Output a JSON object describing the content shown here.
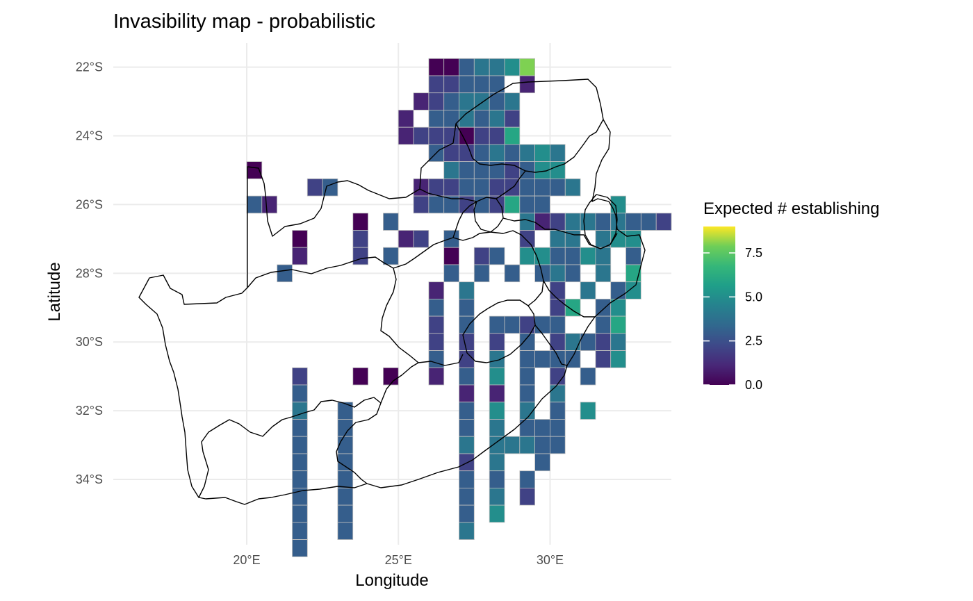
{
  "chart_data": {
    "type": "heatmap",
    "title": "Invasibility map - probabilistic",
    "xlabel": "Longitude",
    "ylabel": "Latitude",
    "xlim": [
      15.6,
      34.0
    ],
    "ylim": [
      -35.9,
      -21.3
    ],
    "x_ticks": [
      {
        "value": 20,
        "label": "20°E"
      },
      {
        "value": 25,
        "label": "25°E"
      },
      {
        "value": 30,
        "label": "30°E"
      }
    ],
    "y_ticks": [
      {
        "value": -22,
        "label": "22°S"
      },
      {
        "value": -24,
        "label": "24°S"
      },
      {
        "value": -26,
        "label": "26°S"
      },
      {
        "value": -28,
        "label": "28°S"
      },
      {
        "value": -30,
        "label": "30°S"
      },
      {
        "value": -32,
        "label": "32°S"
      },
      {
        "value": -34,
        "label": "34°S"
      }
    ],
    "grid": true,
    "cell_size_deg": 0.5,
    "grid_origin_lat": -22,
    "grid_origin_lon": 16.5,
    "legend": {
      "title": "Expected # establishing",
      "colormap": "viridis",
      "min": 0,
      "max": 9,
      "ticks": [
        {
          "value": 0,
          "label": "0.0"
        },
        {
          "value": 2.5,
          "label": "2.5"
        },
        {
          "value": 5,
          "label": "5.0"
        },
        {
          "value": 7.5,
          "label": "7.5"
        }
      ],
      "position": "right"
    },
    "cells": [
      "...................0034458..",
      "...................22333.1..",
      "..................1234434...",
      ".................1.334342...",
      ".................12220226...",
      "...................322343454",
      ".......0............43332355",
      "...........23.....12233223334",
      ".......31.........233232633....5",
      "..............0.3........4124434332...",
      "..........0...2..12.3....2.44.455",
      "..........1...2.3...0.23.553354.3",
      ".........3..........3.3.3.343.4.6",
      "...................1.4.....2.4.35",
      "...................3.3.....26.35",
      "...................2.3.33233..36",
      "...................2.2.2.3.24324",
      "...................3.2.4.3333.25",
      "..........2...0.0..1.3.5.3.2.3.",
      "..........3..........1.1.3.4..",
      "..........4..3.......3.5.4.3.5",
      "..........3..3.......3.4.333",
      "..........3..3.......4.44433",
      "..........3..3.......2.4..3",
      "..........3..3.......3.3.3",
      "..........3..3.......3.4.2",
      "..........3..3.......3.5",
      "..........3..3.......4",
      "..........3"
    ]
  }
}
